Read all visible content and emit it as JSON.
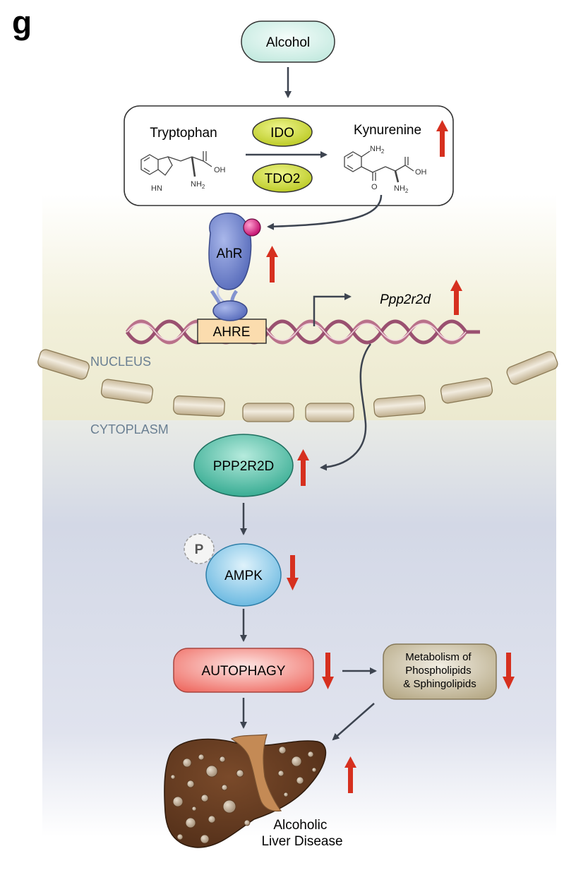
{
  "panel_letter": "g",
  "nodes": {
    "alcohol": "Alcohol",
    "tryptophan": "Tryptophan",
    "ido": "IDO",
    "tdo2": "TDO2",
    "kynurenine": "Kynurenine",
    "ahr": "AhR",
    "ahre": "AHRE",
    "gene": "Ppp2r2d",
    "ppp2r2d": "PPP2R2D",
    "phospho": "P",
    "ampk": "AMPK",
    "autophagy": "AUTOPHAGY",
    "metabolism": [
      "Metabolism of",
      "Phospholipids",
      "& Sphingolipids"
    ],
    "disease": [
      "Alcoholic",
      "Liver Disease"
    ]
  },
  "compartments": {
    "nucleus": "NUCLEUS",
    "cytoplasm": "CYTOPLASM"
  },
  "chem_labels": {
    "nh2": "NH",
    "nh2_sub": "2",
    "oh": "OH",
    "hn": "HN",
    "o": "O"
  },
  "regulation": {
    "kynurenine": "up",
    "ahr": "up",
    "ppp2r2d_gene": "up",
    "ppp2r2d": "up",
    "ampk": "down",
    "autophagy": "down",
    "metabolism": "down",
    "liver_disease": "up"
  },
  "colors": {
    "up_arrow": "#d6301f",
    "down_arrow": "#d6301f",
    "connector": "#3d4450",
    "alcohol_fill": "#cdeee6",
    "enzyme_fill": "#c9d930",
    "ahr_fill": "#5d72c2",
    "ligand": "#d4107a",
    "ppp2r2d_fill": "#3fb59c",
    "ampk_fill": "#7cc3e6",
    "autophagy_fill": "#f3807a",
    "metabolism_fill": "#c8bca0",
    "liver_fill": "#6b3f22",
    "dna_strand": "#b9718a",
    "nucleus_bg": "#f1efd9",
    "cytoplasm_bg": "#d0d6e5"
  }
}
